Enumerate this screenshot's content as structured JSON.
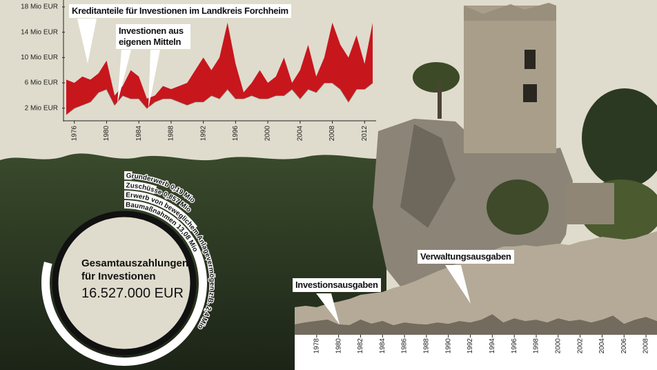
{
  "chart_data": [
    {
      "type": "area",
      "stacked": true,
      "x": [
        1975,
        1976,
        1977,
        1978,
        1979,
        1980,
        1981,
        1982,
        1983,
        1984,
        1985,
        1986,
        1987,
        1988,
        1989,
        1990,
        1991,
        1992,
        1993,
        1994,
        1995,
        1996,
        1997,
        1998,
        1999,
        2000,
        2001,
        2002,
        2003,
        2004,
        2005,
        2006,
        2007,
        2008,
        2009,
        2010,
        2011,
        2012,
        2013
      ],
      "series": [
        {
          "name": "Investionen aus eigenen Mitteln",
          "color": "#8c8a7e",
          "fill": false,
          "values": [
            1,
            2,
            2.5,
            3,
            4.5,
            5,
            2.5,
            4,
            3.5,
            3.5,
            2,
            3,
            3.5,
            3.5,
            3,
            2.5,
            3,
            3,
            4,
            3.5,
            5,
            3.5,
            3.5,
            4,
            3.5,
            3.5,
            4,
            4,
            5,
            3.5,
            5,
            4.5,
            6,
            6,
            5,
            3,
            5,
            5,
            6
          ]
        },
        {
          "name": "Kreditanteile für Investionen im Landkreis Forchheim",
          "color": "#c8161d",
          "fill": true,
          "values": [
            5.5,
            4,
            4.5,
            3.5,
            3,
            4.5,
            1.5,
            1.5,
            4.5,
            3.5,
            1.5,
            1,
            2,
            1.5,
            2.5,
            3.5,
            5,
            7,
            4,
            6.5,
            10.5,
            5.5,
            1,
            2,
            4.5,
            2.5,
            3,
            6,
            1,
            4.5,
            7,
            2.5,
            4,
            9.5,
            7,
            7,
            8.5,
            4,
            9.5
          ]
        }
      ],
      "xlim": [
        1975,
        2013
      ],
      "xticks": [
        1976,
        1980,
        1984,
        1988,
        1992,
        1996,
        2000,
        2004,
        2008,
        2012
      ],
      "ylim": [
        0,
        18
      ],
      "yticks": [
        {
          "value": 2,
          "label": "2 Mio EUR"
        },
        {
          "value": 6,
          "label": "6 Mio EUR"
        },
        {
          "value": 10,
          "label": "10 Mio EUR"
        },
        {
          "value": 14,
          "label": "14 Mio EUR"
        },
        {
          "value": 18,
          "label": "18 Mio EUR"
        }
      ]
    },
    {
      "type": "radial",
      "title": "Gesamtauszahlungen für Investionen",
      "total": "16.527.000 EUR",
      "color": "#ffffff",
      "categories": [
        "Grunderwerb",
        "Zuschüsse",
        "Erwerb von beweglichem Anlagevermögen z.B.",
        "Baumaßnahmen"
      ],
      "values": [
        0.19,
        0.857,
        2.4,
        13.08
      ],
      "value_labels": [
        "0,19 Mio",
        "0,857 Mio",
        "2,4 Mio",
        "13,08 Mio"
      ]
    },
    {
      "type": "area",
      "stacked": true,
      "x": [
        1976,
        1977,
        1978,
        1979,
        1980,
        1981,
        1982,
        1983,
        1984,
        1985,
        1986,
        1987,
        1988,
        1989,
        1990,
        1991,
        1992,
        1993,
        1994,
        1995,
        1996,
        1997,
        1998,
        1999,
        2000,
        2001,
        2002,
        2003,
        2004,
        2005,
        2006,
        2007,
        2008,
        2009
      ],
      "series": [
        {
          "name": "Investionsausgaben",
          "color": "#736b5e",
          "fill": true,
          "values": [
            15,
            18,
            20,
            22,
            15,
            14,
            22,
            16,
            20,
            14,
            18,
            16,
            15,
            18,
            16,
            20,
            18,
            22,
            30,
            18,
            24,
            20,
            22,
            18,
            24,
            20,
            22,
            18,
            22,
            28,
            16,
            22,
            26,
            20
          ]
        },
        {
          "name": "Verwaltungsausgaben",
          "color": "#b5aa97",
          "fill": true,
          "values": [
            25,
            24,
            20,
            23,
            33,
            38,
            36,
            44,
            42,
            54,
            54,
            62,
            70,
            74,
            82,
            85,
            92,
            93,
            92,
            110,
            104,
            110,
            106,
            112,
            108,
            110,
            113,
            120,
            120,
            112,
            122,
            118,
            119,
            130
          ]
        }
      ],
      "xlim": [
        1976,
        2009
      ],
      "xticks": [
        1978,
        1980,
        1982,
        1984,
        1986,
        1988,
        1990,
        1992,
        1994,
        1996,
        1998,
        2000,
        2002,
        2004,
        2006,
        2008
      ],
      "ylim": [
        0,
        160
      ]
    }
  ]
}
